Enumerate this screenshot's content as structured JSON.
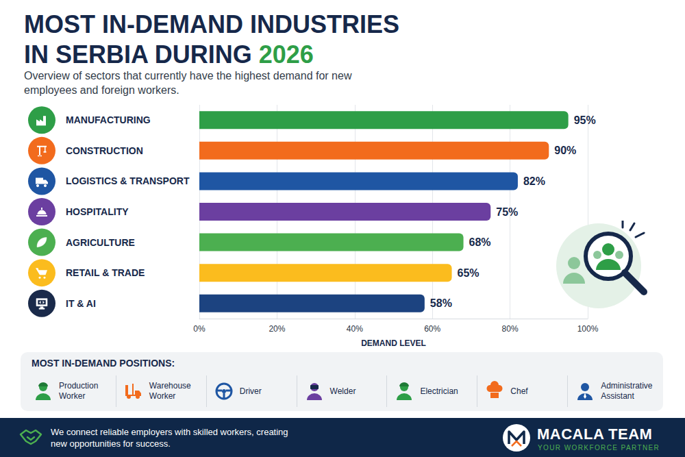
{
  "header": {
    "title": "MOST IN-DEMAND INDUSTRIES IN SERBIA DURING 2026",
    "subtitle": "Overview of sectors that currently have the highest demand for new employees and foreign workers."
  },
  "chart_data": {
    "type": "bar",
    "orientation": "horizontal",
    "categories": [
      "MANUFACTURING",
      "CONSTRUCTION",
      "LOGISTICS & TRANSPORT",
      "HOSPITALITY",
      "AGRICULTURE",
      "RETAIL & TRADE",
      "IT & AI"
    ],
    "values": [
      95,
      90,
      82,
      75,
      68,
      65,
      58
    ],
    "value_labels": [
      "95%",
      "90%",
      "82%",
      "75%",
      "68%",
      "65%",
      "58%"
    ],
    "colors": [
      "#2e9e47",
      "#f26b1d",
      "#1f56a3",
      "#6b3fa0",
      "#4caf50",
      "#fbbc1e",
      "#1c4380"
    ],
    "xlabel": "DEMAND LEVEL",
    "xlim": [
      0,
      100
    ],
    "xticks": [
      {
        "value": 0,
        "label": "0%"
      },
      {
        "value": 20,
        "label": "20%"
      },
      {
        "value": 40,
        "label": "40%"
      },
      {
        "value": 60,
        "label": "60%"
      },
      {
        "value": 80,
        "label": "80%"
      },
      {
        "value": 100,
        "label": "100%"
      }
    ],
    "grid": true,
    "data_labels": true
  },
  "positions": {
    "title": "MOST IN-DEMAND POSITIONS:",
    "items": [
      "Production Worker",
      "Warehouse Worker",
      "Driver",
      "Welder",
      "Electrician",
      "Chef",
      "Administrative Assistant"
    ]
  },
  "footer": {
    "text": "We connect reliable employers with skilled workers, creating new opportunities for success.",
    "brand": "MACALA TEAM",
    "tagline": "YOUR WORKFORCE PARTNER"
  }
}
